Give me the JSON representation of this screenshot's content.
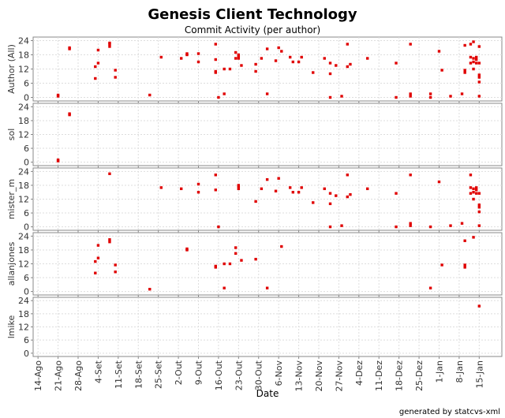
{
  "chart_data": {
    "type": "scatter",
    "title": "Genesis Client Technology",
    "subtitle": "Commit Activity (per author)",
    "xlabel": "Date",
    "footer": "generated by statcvs-xml",
    "color": "#e00000",
    "grid": true,
    "xlim": [
      -1.7,
      161.9
    ],
    "xticks": [
      {
        "value": 0,
        "label": "14-Ago"
      },
      {
        "value": 7,
        "label": "21-Ago"
      },
      {
        "value": 14,
        "label": "28-Ago"
      },
      {
        "value": 21,
        "label": "4-Set"
      },
      {
        "value": 28,
        "label": "11-Set"
      },
      {
        "value": 35,
        "label": "18-Set"
      },
      {
        "value": 42,
        "label": "25-Set"
      },
      {
        "value": 49,
        "label": "2-Out"
      },
      {
        "value": 56,
        "label": "9-Out"
      },
      {
        "value": 63,
        "label": "16-Out"
      },
      {
        "value": 70,
        "label": "23-Out"
      },
      {
        "value": 77,
        "label": "30-Out"
      },
      {
        "value": 84,
        "label": "6-Nov"
      },
      {
        "value": 91,
        "label": "13-Nov"
      },
      {
        "value": 98,
        "label": "20-Nov"
      },
      {
        "value": 105,
        "label": "27-Nov"
      },
      {
        "value": 112,
        "label": "4-Dez"
      },
      {
        "value": 119,
        "label": "11-Dez"
      },
      {
        "value": 126,
        "label": "18-Dez"
      },
      {
        "value": 133,
        "label": "25-Dez"
      },
      {
        "value": 140,
        "label": "1-Jan"
      },
      {
        "value": 147,
        "label": "8-Jan"
      },
      {
        "value": 154,
        "label": "15-Jan"
      }
    ],
    "ylim": [
      -1.5,
      25.5
    ],
    "yticks": [
      0,
      6,
      12,
      18,
      24
    ],
    "panels": [
      {
        "ylabel": "Author (All)",
        "x": [
          7,
          7,
          11,
          11,
          20,
          20,
          21,
          21,
          25,
          25,
          27,
          27,
          39,
          52,
          52,
          62,
          62,
          65,
          65,
          67,
          69,
          69,
          71,
          76,
          80,
          85,
          137,
          141,
          149,
          149,
          149,
          152,
          154,
          25,
          43,
          50,
          56,
          56,
          62,
          62,
          63,
          70,
          70,
          70,
          76,
          78,
          80,
          83,
          84,
          88,
          89,
          91,
          92,
          96,
          100,
          102,
          102,
          102,
          104,
          106,
          108,
          108,
          109,
          115,
          125,
          125,
          130,
          130,
          130,
          137,
          140,
          144,
          148,
          151,
          151,
          151,
          152,
          152,
          152,
          153,
          153,
          153,
          154,
          154,
          154,
          154,
          154
        ],
        "values": [
          1,
          0.5,
          20.5,
          21,
          8,
          13,
          14.5,
          20,
          21.5,
          22.5,
          8.5,
          11.5,
          1,
          18.5,
          18,
          10.5,
          11,
          1.5,
          12,
          12,
          16.5,
          19,
          13.5,
          14,
          1.5,
          19.5,
          1.5,
          11.5,
          10.5,
          11.5,
          22,
          23.5,
          21.5,
          23,
          17,
          16.5,
          18.5,
          15,
          16,
          22.5,
          0,
          16.5,
          17.5,
          18,
          11,
          16.5,
          20.5,
          15.5,
          21,
          17,
          15,
          15,
          17,
          10.5,
          16.5,
          14.5,
          10,
          0,
          13.5,
          0.5,
          22.5,
          13,
          14,
          16.5,
          14.5,
          0,
          22.5,
          1.5,
          0.5,
          0,
          19.5,
          0.5,
          1.5,
          14.5,
          17,
          22.5,
          16.5,
          12,
          15,
          14.5,
          17,
          16,
          6.5,
          8.5,
          14.5,
          9.5,
          0.5
        ]
      },
      {
        "ylabel": "sol",
        "x": [
          7,
          7,
          11,
          11
        ],
        "values": [
          1,
          0.5,
          20.5,
          21
        ]
      },
      {
        "ylabel": "mister_m",
        "x": [
          25,
          43,
          50,
          56,
          56,
          62,
          62,
          63,
          70,
          70,
          70,
          76,
          78,
          80,
          83,
          84,
          88,
          89,
          91,
          92,
          96,
          100,
          102,
          102,
          102,
          104,
          106,
          108,
          108,
          109,
          115,
          125,
          125,
          130,
          130,
          130,
          137,
          140,
          144,
          148,
          151,
          151,
          151,
          152,
          152,
          152,
          153,
          153,
          153,
          154,
          154,
          154,
          154,
          154
        ],
        "values": [
          23,
          17,
          16.5,
          18.5,
          15,
          16,
          22.5,
          0,
          16.5,
          17.5,
          18,
          11,
          16.5,
          20.5,
          15.5,
          21,
          17,
          15,
          15,
          17,
          10.5,
          16.5,
          14.5,
          10,
          0,
          13.5,
          0.5,
          22.5,
          13,
          14,
          16.5,
          14.5,
          0,
          22.5,
          1.5,
          0.5,
          0,
          19.5,
          0.5,
          1.5,
          14.5,
          17,
          22.5,
          16.5,
          12,
          15,
          14.5,
          17,
          16,
          6.5,
          8.5,
          14.5,
          9.5,
          0.5
        ]
      },
      {
        "ylabel": "allanjones",
        "x": [
          20,
          20,
          21,
          21,
          25,
          25,
          27,
          27,
          39,
          52,
          52,
          62,
          62,
          65,
          65,
          67,
          69,
          69,
          71,
          76,
          80,
          85,
          137,
          141,
          149,
          149,
          149,
          152
        ],
        "values": [
          8,
          13,
          14.5,
          20,
          21.5,
          22.5,
          8.5,
          11.5,
          1,
          18.5,
          18,
          10.5,
          11,
          1.5,
          12,
          12,
          16.5,
          19,
          13.5,
          14,
          1.5,
          19.5,
          1.5,
          11.5,
          10.5,
          11.5,
          22,
          23.5
        ]
      },
      {
        "ylabel": "lmike",
        "x": [
          154
        ],
        "values": [
          21.5
        ]
      }
    ]
  }
}
